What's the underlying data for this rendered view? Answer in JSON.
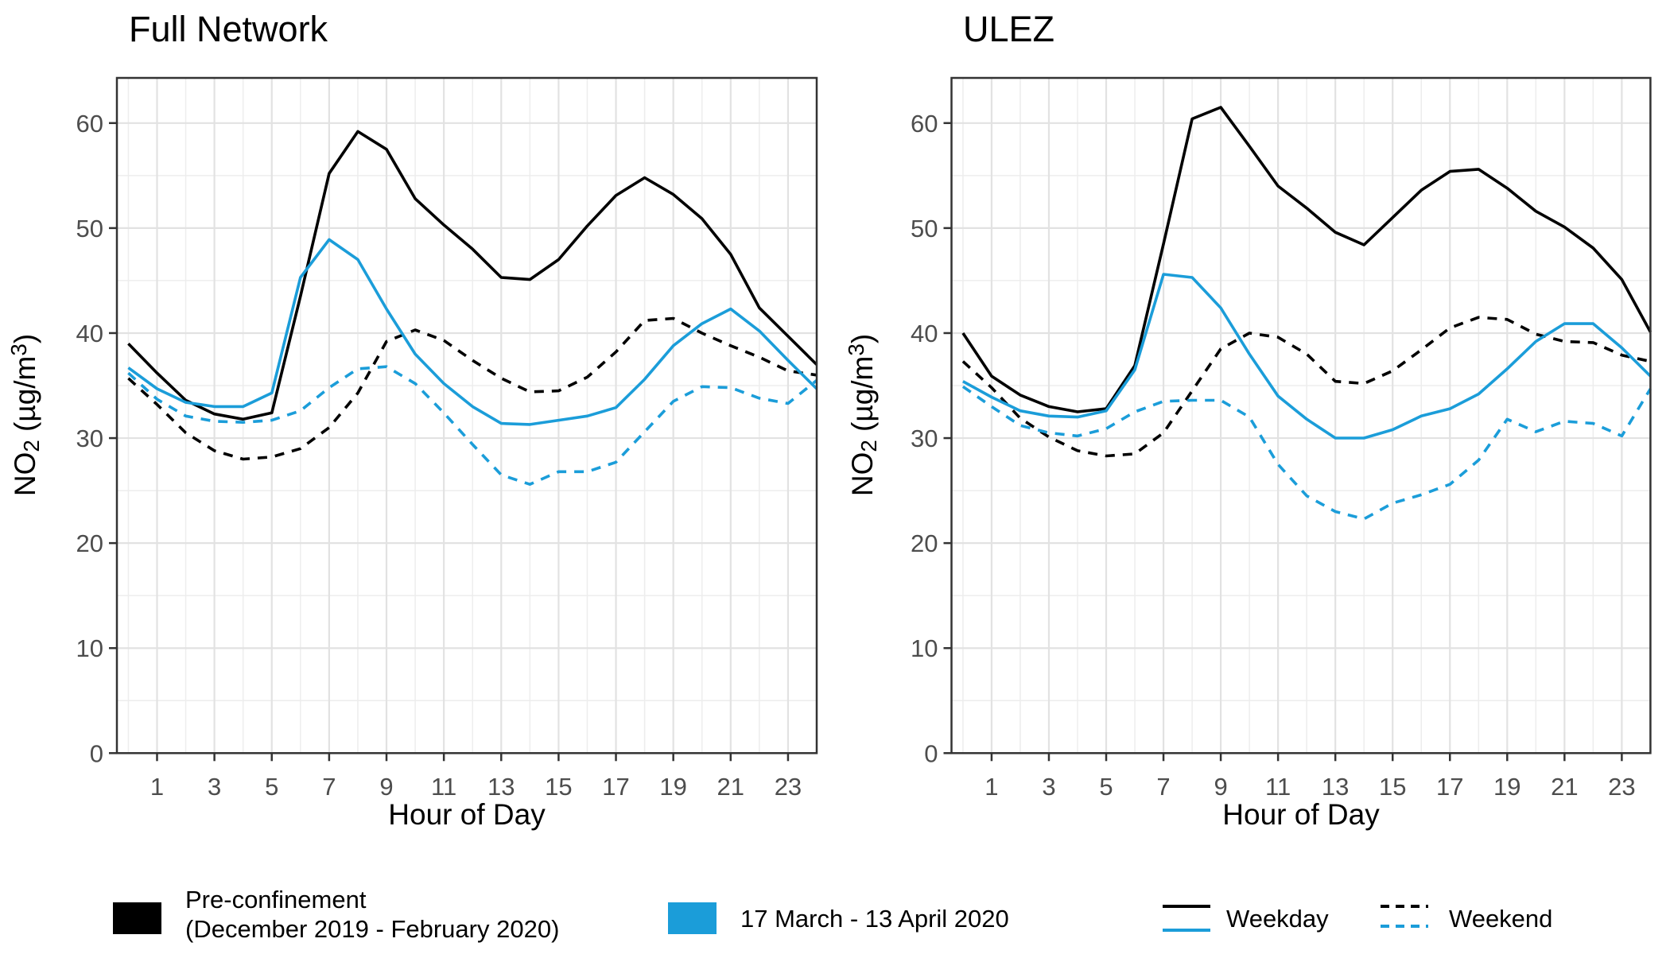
{
  "colors": {
    "pre_confinement": "#000000",
    "confinement": "#1b9dd9",
    "grid_major": "#e2e2e2",
    "grid_minor": "#ededed",
    "panel_border": "#333333",
    "tick_label": "#4d4d4d"
  },
  "chart_data": [
    {
      "type": "line",
      "title": "Full Network",
      "xlabel": "Hour of Day",
      "ylabel": "NO2 (µg/m3)",
      "ylabel_parts": [
        {
          "text": "NO"
        },
        {
          "text": "2",
          "script": "sub"
        },
        {
          "text": " (µg/m"
        },
        {
          "text": "3",
          "script": "sup"
        },
        {
          "text": ")"
        }
      ],
      "x_hours": [
        0,
        1,
        2,
        3,
        4,
        5,
        6,
        7,
        8,
        9,
        10,
        11,
        12,
        13,
        14,
        15,
        16,
        17,
        18,
        19,
        20,
        21,
        22,
        23,
        24
      ],
      "x_ticks": [
        1,
        3,
        5,
        7,
        9,
        11,
        13,
        15,
        17,
        19,
        21,
        23
      ],
      "y_ticks": [
        0,
        10,
        20,
        30,
        40,
        50,
        60
      ],
      "xlim": [
        -0.4,
        24
      ],
      "ylim": [
        0,
        64.3
      ],
      "grid": true,
      "series": [
        {
          "name": "Pre-confinement Weekday",
          "period": "Pre-confinement (December 2019 - February 2020)",
          "daytype": "Weekday",
          "color_key": "pre_confinement",
          "linetype": "solid",
          "values": [
            39.0,
            36.2,
            33.6,
            32.3,
            31.8,
            32.4,
            43.5,
            55.2,
            59.2,
            57.5,
            52.8,
            50.3,
            48.0,
            45.3,
            45.1,
            47.0,
            50.2,
            53.1,
            54.8,
            53.2,
            50.9,
            47.5,
            42.4,
            39.7,
            37.0
          ]
        },
        {
          "name": "Pre-confinement Weekend",
          "period": "Pre-confinement (December 2019 - February 2020)",
          "daytype": "Weekend",
          "color_key": "pre_confinement",
          "linetype": "dashed",
          "values": [
            35.7,
            33.2,
            30.5,
            28.8,
            28.0,
            28.2,
            29.0,
            31.0,
            34.3,
            39.2,
            40.3,
            39.3,
            37.4,
            35.7,
            34.4,
            34.5,
            35.8,
            38.2,
            41.2,
            41.4,
            40.0,
            38.8,
            37.7,
            36.4,
            36.0
          ]
        },
        {
          "name": "Confinement Weekday",
          "period": "17 March - 13 April 2020",
          "daytype": "Weekday",
          "color_key": "confinement",
          "linetype": "solid",
          "values": [
            36.7,
            34.7,
            33.4,
            33.0,
            33.0,
            34.3,
            45.3,
            48.9,
            47.0,
            42.3,
            38.0,
            35.2,
            33.0,
            31.4,
            31.3,
            31.7,
            32.1,
            32.9,
            35.6,
            38.8,
            40.9,
            42.3,
            40.2,
            37.4,
            34.7
          ]
        },
        {
          "name": "Confinement Weekend",
          "period": "17 March - 13 April 2020",
          "daytype": "Weekend",
          "color_key": "confinement",
          "linetype": "dashed",
          "values": [
            36.2,
            33.7,
            32.1,
            31.6,
            31.5,
            31.7,
            32.6,
            34.8,
            36.6,
            36.8,
            35.2,
            32.4,
            29.4,
            26.5,
            25.6,
            26.8,
            26.8,
            27.7,
            30.6,
            33.5,
            34.9,
            34.8,
            33.8,
            33.3,
            35.5
          ]
        }
      ]
    },
    {
      "type": "line",
      "title": "ULEZ",
      "xlabel": "Hour of Day",
      "ylabel": "NO2 (µg/m3)",
      "ylabel_parts": [
        {
          "text": "NO"
        },
        {
          "text": "2",
          "script": "sub"
        },
        {
          "text": " (µg/m"
        },
        {
          "text": "3",
          "script": "sup"
        },
        {
          "text": ")"
        }
      ],
      "x_hours": [
        0,
        1,
        2,
        3,
        4,
        5,
        6,
        7,
        8,
        9,
        10,
        11,
        12,
        13,
        14,
        15,
        16,
        17,
        18,
        19,
        20,
        21,
        22,
        23,
        24
      ],
      "x_ticks": [
        1,
        3,
        5,
        7,
        9,
        11,
        13,
        15,
        17,
        19,
        21,
        23
      ],
      "y_ticks": [
        0,
        10,
        20,
        30,
        40,
        50,
        60
      ],
      "xlim": [
        -0.4,
        24
      ],
      "ylim": [
        0,
        64.3
      ],
      "grid": true,
      "series": [
        {
          "name": "Pre-confinement Weekday",
          "period": "Pre-confinement (December 2019 - February 2020)",
          "daytype": "Weekday",
          "color_key": "pre_confinement",
          "linetype": "solid",
          "values": [
            40.0,
            35.9,
            34.1,
            33.0,
            32.5,
            32.8,
            36.9,
            48.5,
            60.4,
            61.5,
            57.8,
            54.0,
            51.9,
            49.6,
            48.4,
            51.0,
            53.6,
            55.4,
            55.6,
            53.8,
            51.6,
            50.1,
            48.1,
            45.1,
            40.1
          ]
        },
        {
          "name": "Pre-confinement Weekend",
          "period": "Pre-confinement (December 2019 - February 2020)",
          "daytype": "Weekend",
          "color_key": "pre_confinement",
          "linetype": "dashed",
          "values": [
            37.3,
            34.8,
            31.9,
            30.1,
            28.8,
            28.3,
            28.5,
            30.5,
            34.5,
            38.5,
            40.0,
            39.6,
            38.0,
            35.4,
            35.2,
            36.4,
            38.4,
            40.5,
            41.5,
            41.3,
            39.9,
            39.2,
            39.1,
            37.9,
            37.3
          ]
        },
        {
          "name": "Confinement Weekday",
          "period": "17 March - 13 April 2020",
          "daytype": "Weekday",
          "color_key": "confinement",
          "linetype": "solid",
          "values": [
            35.4,
            33.9,
            32.6,
            32.1,
            32.0,
            32.6,
            36.5,
            45.6,
            45.3,
            42.4,
            38.0,
            34.0,
            31.8,
            30.0,
            30.0,
            30.8,
            32.1,
            32.8,
            34.2,
            36.6,
            39.2,
            40.9,
            40.9,
            38.6,
            35.9
          ]
        },
        {
          "name": "Confinement Weekend",
          "period": "17 March - 13 April 2020",
          "daytype": "Weekend",
          "color_key": "confinement",
          "linetype": "dashed",
          "values": [
            34.9,
            33.0,
            31.2,
            30.5,
            30.2,
            30.9,
            32.5,
            33.5,
            33.6,
            33.6,
            32.0,
            27.5,
            24.5,
            23.0,
            22.3,
            23.8,
            24.6,
            25.6,
            27.9,
            31.8,
            30.6,
            31.6,
            31.4,
            30.2,
            34.7
          ]
        }
      ]
    }
  ],
  "legend": {
    "fill_items": [
      {
        "label_lines": [
          "Pre-confinement",
          "(December 2019 - February 2020)"
        ],
        "color_key": "pre_confinement"
      },
      {
        "label_lines": [
          "17 March - 13 April 2020"
        ],
        "color_key": "confinement"
      }
    ],
    "linetype_items": [
      {
        "label": "Weekday",
        "linetype": "solid"
      },
      {
        "label": "Weekend",
        "linetype": "dashed"
      }
    ]
  }
}
